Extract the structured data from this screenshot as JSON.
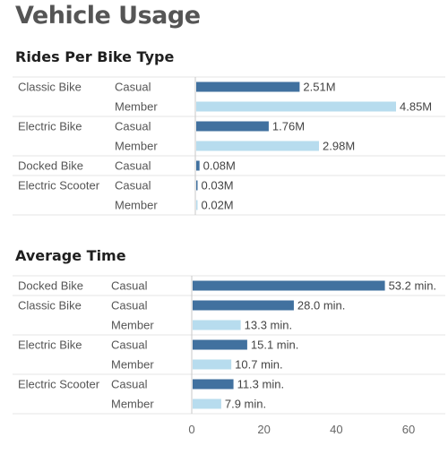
{
  "page_title": "Vehicle Usage",
  "colors": {
    "casual": "#41719f",
    "member": "#b7dcee",
    "axis": "#c8c8c8",
    "separator": "#e4e4e4"
  },
  "chart_data": [
    {
      "type": "bar",
      "orientation": "horizontal",
      "title": "Rides Per Bike Type",
      "value_unit": "M",
      "rows": [
        {
          "category": "Classic Bike",
          "segment": "Casual",
          "value": 2.51,
          "label": "2.51M"
        },
        {
          "category": "",
          "segment": "Member",
          "value": 4.85,
          "label": "4.85M"
        },
        {
          "category": "Electric Bike",
          "segment": "Casual",
          "value": 1.76,
          "label": "1.76M"
        },
        {
          "category": "",
          "segment": "Member",
          "value": 2.98,
          "label": "2.98M"
        },
        {
          "category": "Docked Bike",
          "segment": "Casual",
          "value": 0.08,
          "label": "0.08M"
        },
        {
          "category": "Electric Scooter",
          "segment": "Casual",
          "value": 0.03,
          "label": "0.03M"
        },
        {
          "category": "",
          "segment": "Member",
          "value": 0.02,
          "label": "0.02M"
        }
      ],
      "xlim": [
        0,
        4.85
      ]
    },
    {
      "type": "bar",
      "orientation": "horizontal",
      "title": "Average Time",
      "value_unit": "min.",
      "rows": [
        {
          "category": "Docked Bike",
          "segment": "Casual",
          "value": 53.2,
          "label": "53.2 min."
        },
        {
          "category": "Classic Bike",
          "segment": "Casual",
          "value": 28.0,
          "label": "28.0 min."
        },
        {
          "category": "",
          "segment": "Member",
          "value": 13.3,
          "label": "13.3 min."
        },
        {
          "category": "Electric Bike",
          "segment": "Casual",
          "value": 15.1,
          "label": "15.1 min."
        },
        {
          "category": "",
          "segment": "Member",
          "value": 10.7,
          "label": "10.7 min."
        },
        {
          "category": "Electric Scooter",
          "segment": "Casual",
          "value": 11.3,
          "label": "11.3 min."
        },
        {
          "category": "",
          "segment": "Member",
          "value": 7.9,
          "label": "7.9 min."
        }
      ],
      "xlim": [
        0,
        60
      ],
      "xticks": [
        0,
        20,
        40,
        60
      ],
      "grid": false
    }
  ]
}
